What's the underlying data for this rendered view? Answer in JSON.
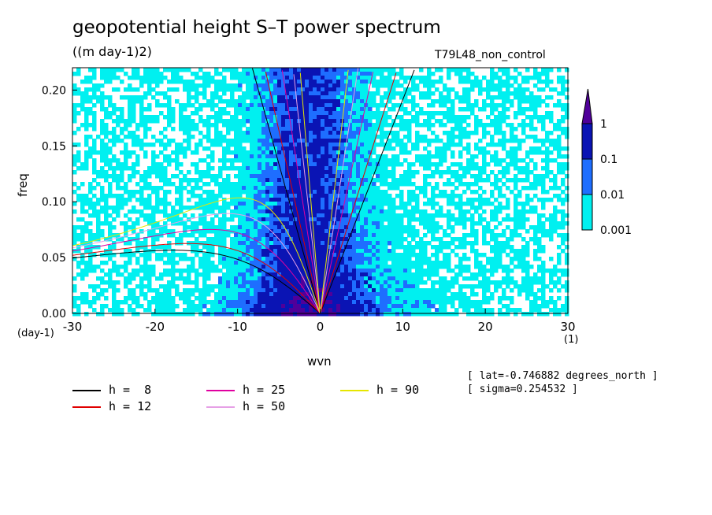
{
  "title": "geopotential height S–T power spectrum",
  "units": "((m day-1)2)",
  "run_label": "T79L48_non_control",
  "info": [
    "[ lat=-0.746882 degrees_north ]",
    "[ sigma=0.254532 ]"
  ],
  "chart_data": {
    "type": "heatmap",
    "xlabel": "wvn",
    "ylabel": "freq",
    "x_unit_label": "(1)",
    "y_unit_label": "(day-1)",
    "xlim": [
      -30,
      30
    ],
    "ylim": [
      0,
      0.22
    ],
    "xticks": [
      "-30",
      "-20",
      "-10",
      "0",
      "10",
      "20",
      "30"
    ],
    "yticks": [
      "0.00",
      "0.05",
      "0.10",
      "0.15",
      "0.20"
    ],
    "colorbar": {
      "levels": [
        "0.001",
        "0.01",
        "0.1",
        "1"
      ],
      "colors": [
        "#00f0f0",
        "#1e6eff",
        "#0a14b4",
        "#50009a"
      ],
      "background": "#ffffff"
    },
    "dispersion_curves": [
      {
        "label": "h =  8",
        "color": "#000000"
      },
      {
        "label": "h = 12",
        "color": "#e00000"
      },
      {
        "label": "h = 25",
        "color": "#e000a0"
      },
      {
        "label": "h = 50",
        "color": "#e6a0e6"
      },
      {
        "label": "h = 90",
        "color": "#e6e600"
      }
    ],
    "legend_position": "bottom"
  }
}
